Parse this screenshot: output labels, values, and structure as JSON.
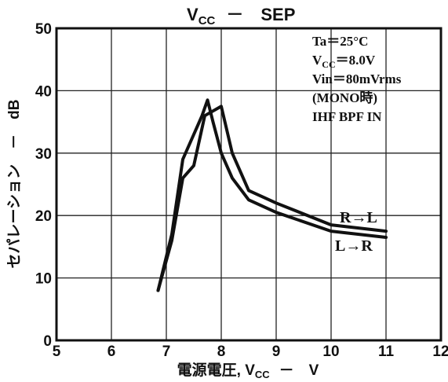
{
  "chart_data": {
    "type": "line",
    "title_main": "V",
    "title_sub": "CC",
    "title_rest": "－　SEP",
    "xlabel_prefix": "電源電圧, V",
    "xlabel_sub": "CC",
    "xlabel_suffix": "－　V",
    "ylabel": "セパレーション　－　dB",
    "xlim": [
      5,
      12
    ],
    "ylim": [
      0,
      50
    ],
    "x_ticks": [
      "5",
      "6",
      "7",
      "8",
      "9",
      "10",
      "11",
      "12"
    ],
    "y_ticks": [
      "0",
      "10",
      "20",
      "30",
      "40",
      "50"
    ],
    "grid": true,
    "conditions": {
      "line1": "Ta＝25°C",
      "line2_main": "V",
      "line2_sub": "CC",
      "line2_rest": "＝8.0V",
      "line3": "Vin＝80mVrms",
      "line4": "(MONO時)",
      "line5": "IHF BPF IN"
    },
    "series": [
      {
        "name": "R→L",
        "x": [
          6.85,
          7.1,
          7.3,
          7.5,
          7.7,
          7.8,
          8.0,
          8.2,
          8.5,
          9.0,
          10.0,
          11.0
        ],
        "y": [
          8,
          16,
          26,
          28,
          36,
          36.5,
          37.5,
          30,
          24,
          22,
          18.5,
          17.5
        ]
      },
      {
        "name": "L→R",
        "x": [
          6.85,
          7.1,
          7.3,
          7.5,
          7.65,
          7.75,
          7.85,
          8.0,
          8.2,
          8.5,
          9.0,
          10.0,
          11.0
        ],
        "y": [
          8,
          17,
          29,
          33,
          36,
          38.5,
          35,
          30,
          26,
          22.5,
          20.5,
          17.5,
          16.5
        ]
      }
    ],
    "series_label_1": "R→L",
    "series_label_2": "L→R"
  }
}
